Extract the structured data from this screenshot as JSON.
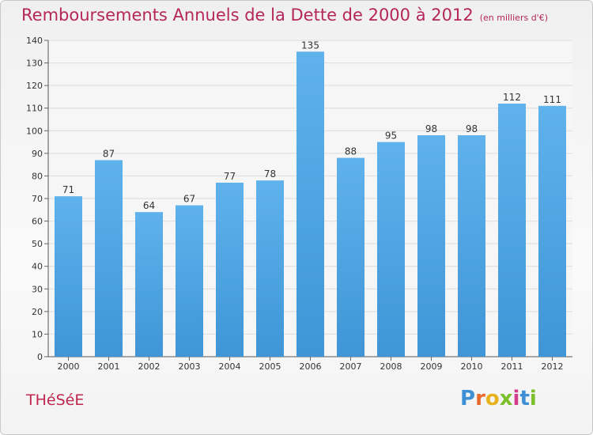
{
  "title": "Remboursements Annuels de la Dette de 2000 à 2012",
  "unit": "(en milliers d'€)",
  "commune": "THéSéE",
  "logo": {
    "letters": [
      "P",
      "r",
      "o",
      "x",
      "i",
      "t",
      "i"
    ],
    "colors": [
      "#3d8fd6",
      "#e9692c",
      "#e8b21e",
      "#7bbf2b",
      "#d43d8d",
      "#3d8fd6",
      "#7bbf2b"
    ]
  },
  "colors": {
    "bar": "#3f95d6",
    "bar_light": "#5fb2ec",
    "title": "#b5265a"
  },
  "chart_data": {
    "type": "bar",
    "categories": [
      "2000",
      "2001",
      "2002",
      "2003",
      "2004",
      "2005",
      "2006",
      "2007",
      "2008",
      "2009",
      "2010",
      "2011",
      "2012"
    ],
    "values": [
      71,
      87,
      64,
      67,
      77,
      78,
      135,
      88,
      95,
      98,
      98,
      112,
      111
    ],
    "ylim": [
      0,
      140
    ],
    "yticks": [
      0,
      10,
      20,
      30,
      40,
      50,
      60,
      70,
      80,
      90,
      100,
      110,
      120,
      130,
      140
    ],
    "grid": true,
    "data_labels": true
  }
}
